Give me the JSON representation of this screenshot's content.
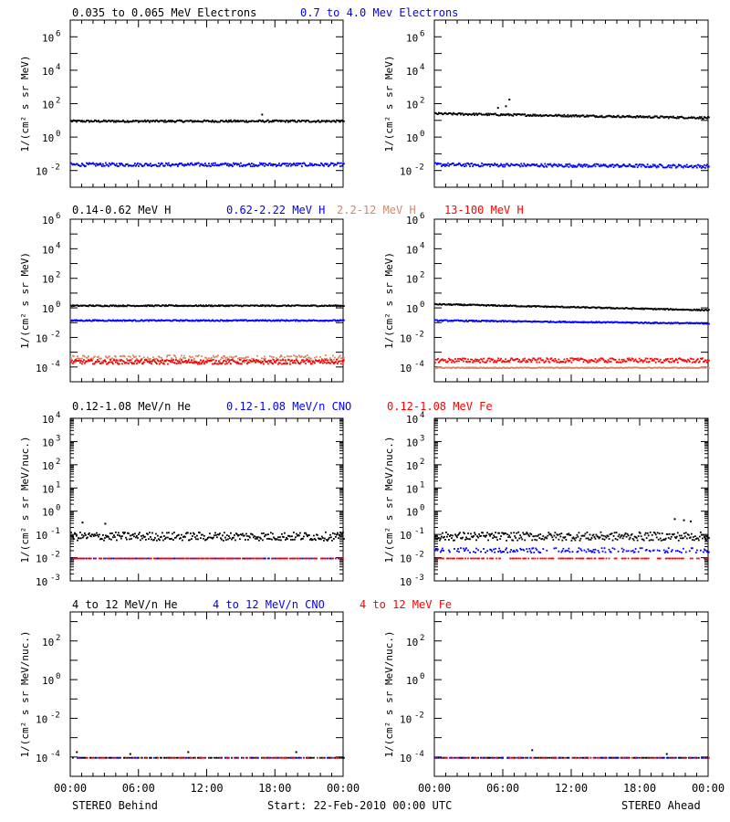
{
  "colors": {
    "black": "#000000",
    "blue": "#0000ff",
    "tan": "#d3876a",
    "red": "#ff0000"
  },
  "footer": {
    "left": "STEREO Behind",
    "center": "Start: 22-Feb-2010 00:00 UTC",
    "right": "STEREO Ahead"
  },
  "rows": [
    {
      "legend": [
        {
          "text": "0.035 to 0.065 MeV Electrons",
          "color": "black"
        },
        {
          "text": "0.7 to 4.0 Mev Electrons",
          "color": "blue"
        }
      ],
      "ylabel": "1/(cm² s sr MeV)",
      "y_ticks": [
        {
          "exp": -2,
          "text": "10",
          "sup": "-2"
        },
        {
          "exp": 0,
          "text": "10",
          "sup": "0"
        },
        {
          "exp": 2,
          "text": "10",
          "sup": "2"
        },
        {
          "exp": 4,
          "text": "10",
          "sup": "4"
        },
        {
          "exp": 6,
          "text": "10",
          "sup": "6"
        }
      ]
    },
    {
      "legend": [
        {
          "text": "0.14-0.62 MeV H",
          "color": "black"
        },
        {
          "text": "0.62-2.22 MeV H",
          "color": "blue"
        },
        {
          "text": "2.2-12 MeV H",
          "color": "tan"
        },
        {
          "text": "13-100 MeV H",
          "color": "red"
        }
      ],
      "ylabel": "1/(cm² s sr MeV)",
      "y_ticks": [
        {
          "exp": -4,
          "text": "10",
          "sup": "-4"
        },
        {
          "exp": -2,
          "text": "10",
          "sup": "-2"
        },
        {
          "exp": 0,
          "text": "10",
          "sup": "0"
        },
        {
          "exp": 2,
          "text": "10",
          "sup": "2"
        },
        {
          "exp": 4,
          "text": "10",
          "sup": "4"
        },
        {
          "exp": 6,
          "text": "10",
          "sup": "6"
        }
      ]
    },
    {
      "legend": [
        {
          "text": "0.12-1.08 MeV/n He",
          "color": "black"
        },
        {
          "text": "0.12-1.08 MeV/n CNO",
          "color": "blue"
        },
        {
          "text": "0.12-1.08 MeV Fe",
          "color": "red"
        }
      ],
      "ylabel": "1/(cm² s sr MeV/nuc.)",
      "y_ticks": [
        {
          "exp": -3,
          "text": "10",
          "sup": "-3"
        },
        {
          "exp": -2,
          "text": "10",
          "sup": "-2"
        },
        {
          "exp": -1,
          "text": "10",
          "sup": "-1"
        },
        {
          "exp": 0,
          "text": "10",
          "sup": "0"
        },
        {
          "exp": 1,
          "text": "10",
          "sup": "1"
        },
        {
          "exp": 2,
          "text": "10",
          "sup": "2"
        },
        {
          "exp": 3,
          "text": "10",
          "sup": "3"
        },
        {
          "exp": 4,
          "text": "10",
          "sup": "4"
        }
      ]
    },
    {
      "legend": [
        {
          "text": "4 to 12 MeV/n He",
          "color": "black"
        },
        {
          "text": "4 to 12 MeV/n CNO",
          "color": "blue"
        },
        {
          "text": "4 to 12 MeV Fe",
          "color": "red"
        }
      ],
      "ylabel": "1/(cm² s sr MeV/nuc.)",
      "y_ticks": [
        {
          "exp": -4,
          "text": "10",
          "sup": "-4"
        },
        {
          "exp": -2,
          "text": "10",
          "sup": "-2"
        },
        {
          "exp": 0,
          "text": "10",
          "sup": "0"
        },
        {
          "exp": 2,
          "text": "10",
          "sup": "2"
        }
      ]
    }
  ],
  "chart_data": {
    "type": "scatter",
    "x_ticks": [
      "00:00",
      "06:00",
      "12:00",
      "18:00",
      "00:00"
    ],
    "x_range_hours": [
      0,
      24
    ],
    "y_scale": "log",
    "panels": [
      {
        "id": "behind-electrons",
        "row": 0,
        "col": 0,
        "ylim_exp": [
          -3,
          7
        ],
        "series": [
          {
            "name": "0.035 to 0.065 MeV Electrons",
            "color": "black",
            "level_exp": 1.0,
            "spread": 0.06,
            "spikes": [
              [
                16.8,
                1.4
              ]
            ]
          },
          {
            "name": "0.7 to 4.0 Mev Electrons",
            "color": "blue",
            "level_exp": -1.6,
            "spread": 0.1,
            "spikes": []
          }
        ]
      },
      {
        "id": "ahead-electrons",
        "row": 0,
        "col": 1,
        "ylim_exp": [
          -3,
          7
        ],
        "series": [
          {
            "name": "0.035 to 0.065 MeV Electrons",
            "color": "black",
            "level_exp": 1.45,
            "end_exp": 1.2,
            "spread": 0.06,
            "spikes": [
              [
                5.5,
                1.8
              ],
              [
                6.5,
                2.3
              ],
              [
                6.2,
                1.9
              ]
            ]
          },
          {
            "name": "0.7 to 4.0 Mev Electrons",
            "color": "blue",
            "level_exp": -1.6,
            "end_exp": -1.7,
            "spread": 0.1,
            "spikes": []
          }
        ]
      },
      {
        "id": "behind-protons",
        "row": 1,
        "col": 0,
        "ylim_exp": [
          -5,
          6
        ],
        "series": [
          {
            "name": "0.14-0.62 MeV H",
            "color": "black",
            "level_exp": 0.2,
            "spread": 0.04,
            "spikes": []
          },
          {
            "name": "0.62-2.22 MeV H",
            "color": "blue",
            "level_exp": -0.8,
            "spread": 0.04,
            "spikes": []
          },
          {
            "name": "2.2-12 MeV H",
            "color": "tan",
            "level_exp": -3.4,
            "spread": 0.25,
            "spikes": []
          },
          {
            "name": "13-100 MeV H",
            "color": "red",
            "level_exp": -3.6,
            "spread": 0.15,
            "spikes": []
          }
        ]
      },
      {
        "id": "ahead-protons",
        "row": 1,
        "col": 1,
        "ylim_exp": [
          -5,
          6
        ],
        "series": [
          {
            "name": "0.14-0.62 MeV H",
            "color": "black",
            "level_exp": 0.3,
            "end_exp": -0.1,
            "spread": 0.04,
            "spikes": []
          },
          {
            "name": "0.62-2.22 MeV H",
            "color": "blue",
            "level_exp": -0.8,
            "end_exp": -1.0,
            "spread": 0.04,
            "spikes": []
          },
          {
            "name": "2.2-12 MeV H",
            "color": "tan",
            "level_exp": -4.0,
            "spread": 0.03,
            "spikes": []
          },
          {
            "name": "13-100 MeV H",
            "color": "red",
            "level_exp": -3.5,
            "spread": 0.15,
            "spikes": []
          }
        ]
      },
      {
        "id": "behind-ions-low",
        "row": 2,
        "col": 0,
        "ylim_exp": [
          -3,
          4
        ],
        "series": [
          {
            "name": "0.12-1.08 MeV/n He",
            "color": "black",
            "level_exp": -1.05,
            "spread": 0.18,
            "spikes": [
              [
                1.0,
                -0.45
              ],
              [
                3.0,
                -0.5
              ]
            ]
          },
          {
            "name": "0.12-1.08 MeV/n CNO",
            "color": "blue",
            "level_exp": -2.0,
            "spread": 0.0,
            "spikes": []
          },
          {
            "name": "0.12-1.08 MeV Fe",
            "color": "red",
            "level_exp": -2.0,
            "spread": 0.0,
            "spikes": []
          }
        ]
      },
      {
        "id": "ahead-ions-low",
        "row": 2,
        "col": 1,
        "ylim_exp": [
          -3,
          4
        ],
        "series": [
          {
            "name": "0.12-1.08 MeV/n He",
            "color": "black",
            "level_exp": -1.05,
            "spread": 0.18,
            "spikes": [
              [
                21.0,
                -0.3
              ],
              [
                21.8,
                -0.35
              ],
              [
                22.4,
                -0.4
              ]
            ]
          },
          {
            "name": "0.12-1.08 MeV/n CNO",
            "color": "blue",
            "level_exp": -1.65,
            "spread": 0.1,
            "spikes": []
          },
          {
            "name": "0.12-1.08 MeV Fe",
            "color": "red",
            "level_exp": -2.0,
            "spread": 0.0,
            "spikes": []
          }
        ]
      },
      {
        "id": "behind-ions-high",
        "row": 3,
        "col": 0,
        "ylim_exp": [
          -5,
          3.5
        ],
        "series": [
          {
            "name": "4 to 12 MeV/n He",
            "color": "black",
            "level_exp": -4.0,
            "spread": 0.0,
            "spikes": [
              [
                0.5,
                -3.7
              ],
              [
                10.3,
                -3.7
              ],
              [
                19.8,
                -3.7
              ],
              [
                5.2,
                -3.8
              ]
            ]
          },
          {
            "name": "4 to 12 MeV/n CNO",
            "color": "blue",
            "level_exp": -4.0,
            "spread": 0.0,
            "spikes": []
          },
          {
            "name": "4 to 12 MeV Fe",
            "color": "red",
            "level_exp": -4.0,
            "spread": 0.0,
            "spikes": []
          }
        ]
      },
      {
        "id": "ahead-ions-high",
        "row": 3,
        "col": 1,
        "ylim_exp": [
          -5,
          3.5
        ],
        "series": [
          {
            "name": "4 to 12 MeV/n He",
            "color": "black",
            "level_exp": -4.0,
            "spread": 0.0,
            "spikes": [
              [
                8.5,
                -3.6
              ],
              [
                20.3,
                -3.8
              ]
            ]
          },
          {
            "name": "4 to 12 MeV/n CNO",
            "color": "blue",
            "level_exp": -4.0,
            "spread": 0.0,
            "spikes": []
          },
          {
            "name": "4 to 12 MeV Fe",
            "color": "red",
            "level_exp": -4.0,
            "spread": 0.0,
            "spikes": []
          }
        ]
      }
    ]
  }
}
